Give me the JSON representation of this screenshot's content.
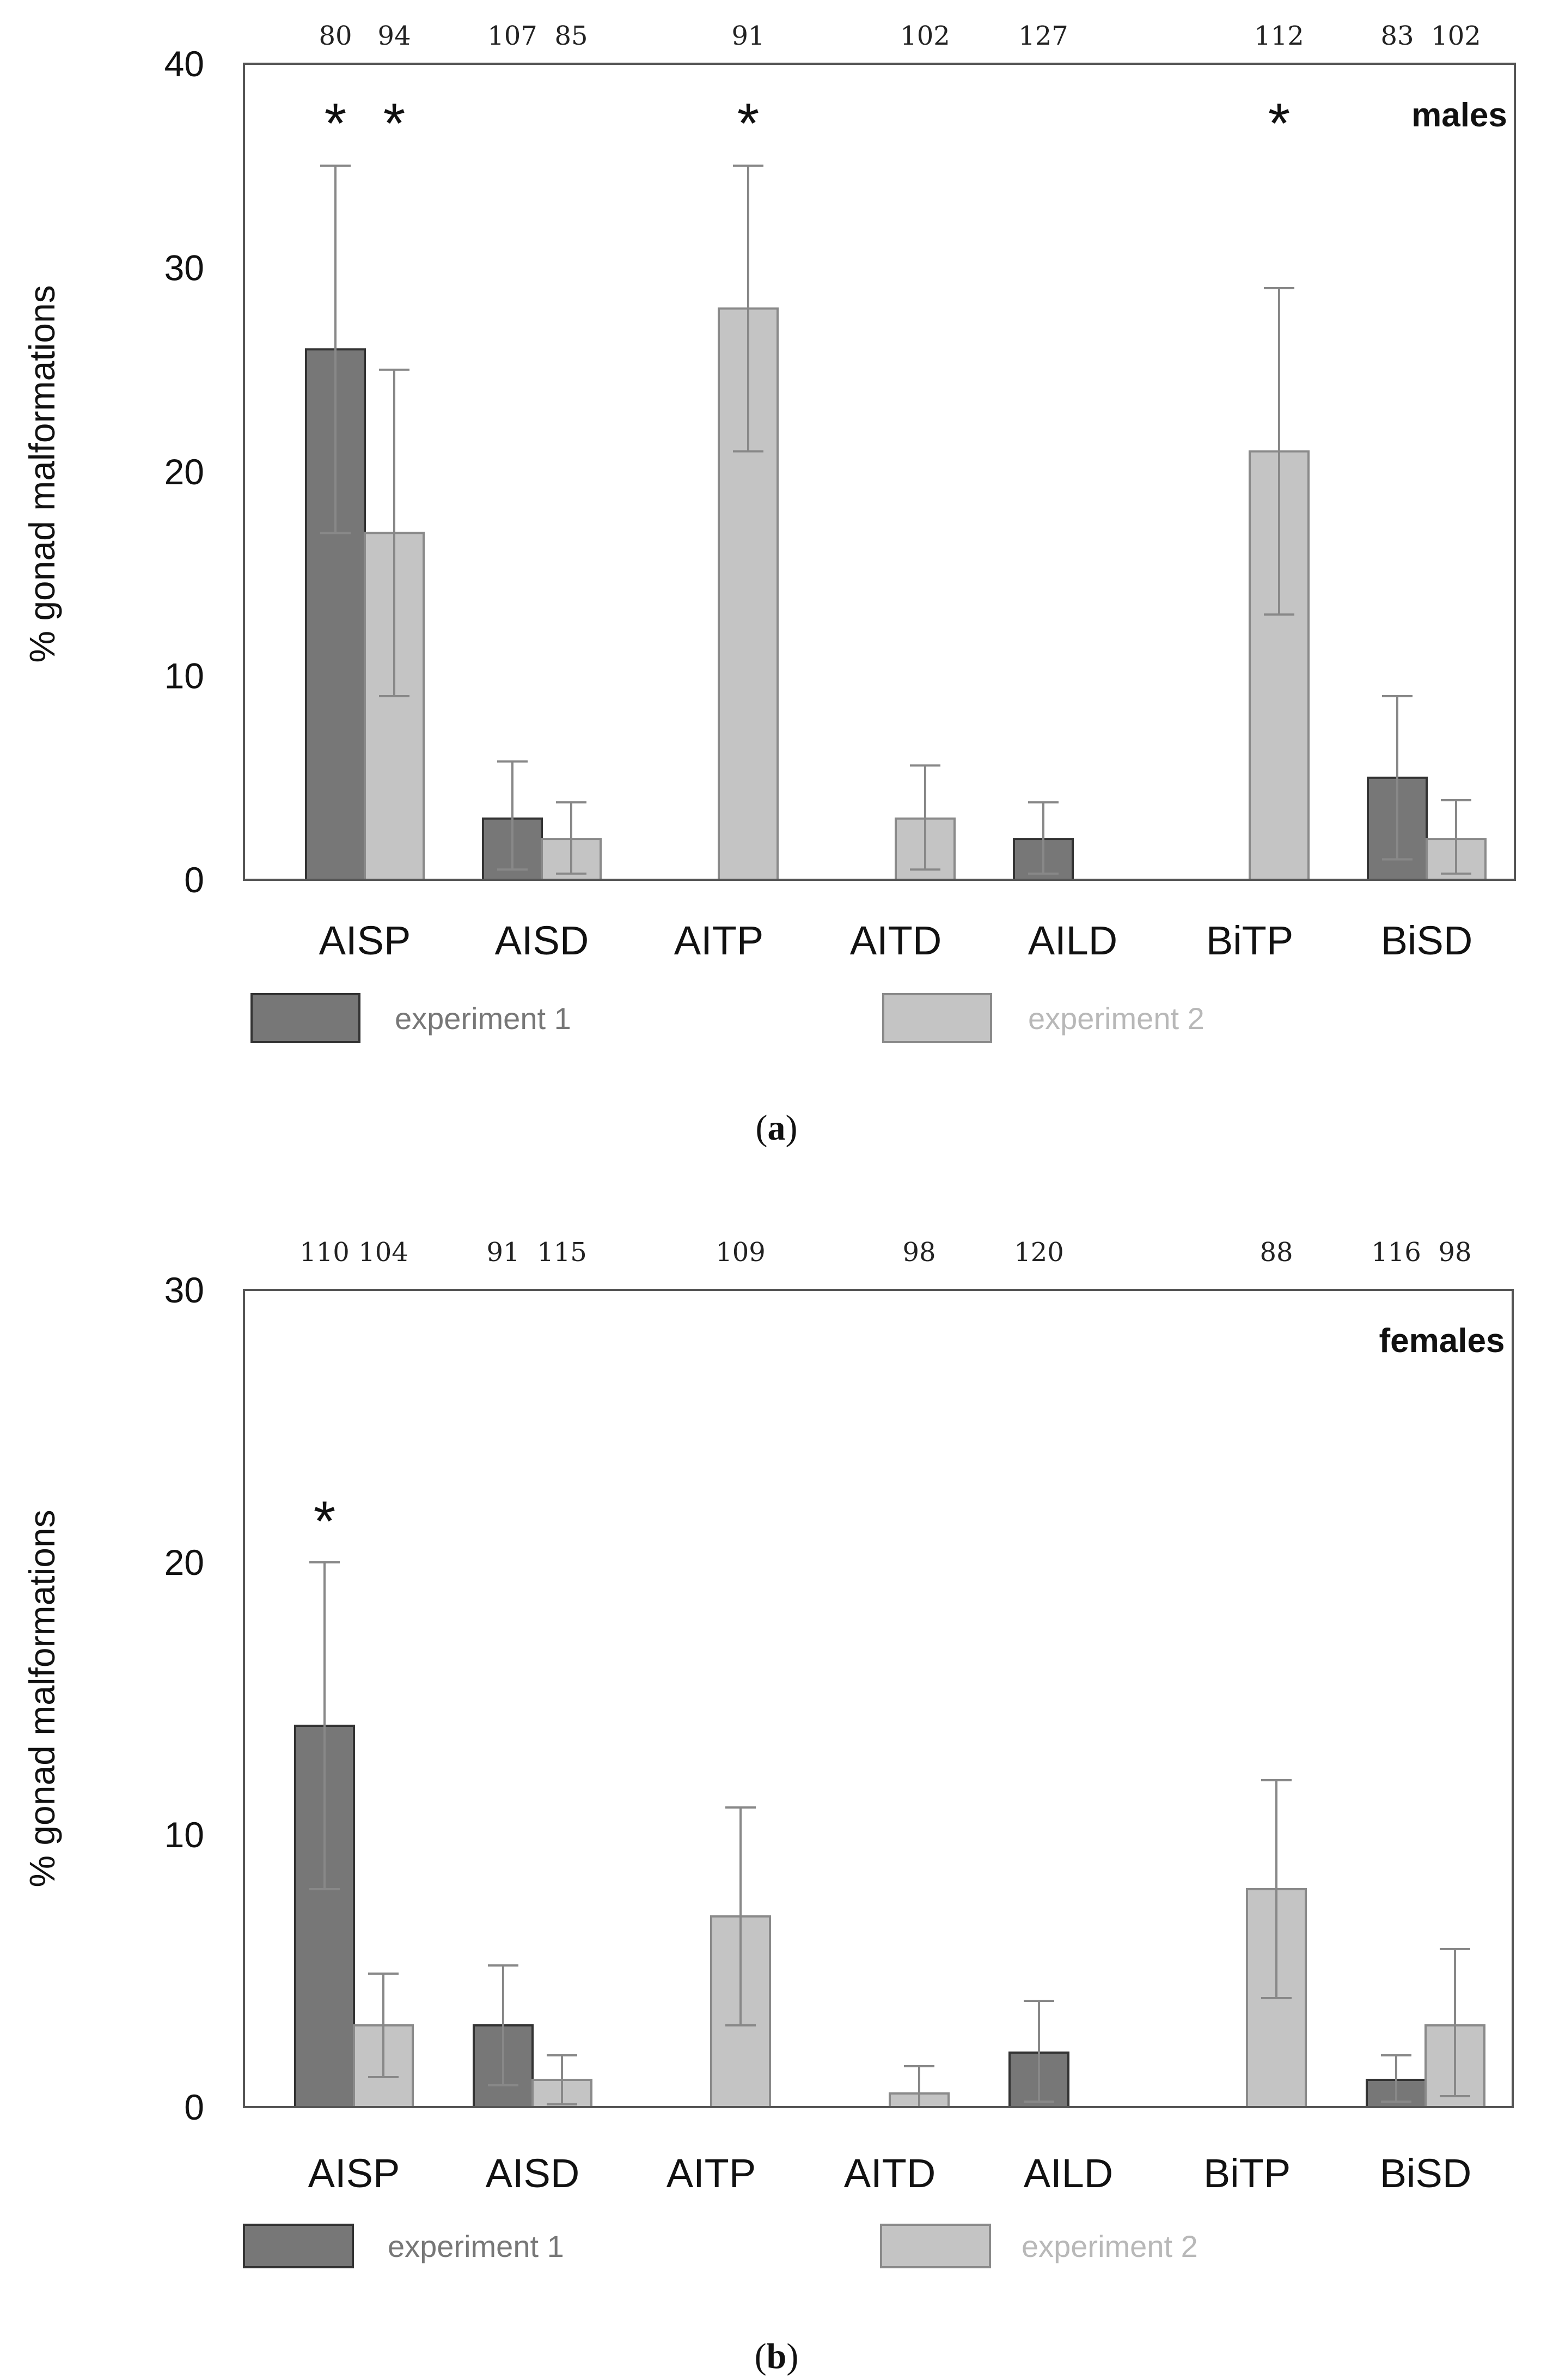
{
  "colors": {
    "experiment_1": "#777777",
    "experiment_2": "#c4c4c4",
    "legend_text_1": "#777777",
    "legend_text_2": "#b8b8b8",
    "frame": "#555555",
    "error_bar": "#888888"
  },
  "chart_data": [
    {
      "type": "bar",
      "panel": "(a)",
      "panel_parts": [
        "(",
        "a",
        ")"
      ],
      "annotation": "males",
      "ylabel": "% gonad malformations",
      "ylim": [
        0,
        40
      ],
      "yticks": [
        0,
        10,
        20,
        30,
        40
      ],
      "categories": [
        "AISP",
        "AISD",
        "AITP",
        "AITD",
        "AILD",
        "BiTP",
        "BiSD"
      ],
      "legend": [
        "experiment 1",
        "experiment 2"
      ],
      "bars": [
        {
          "category": "AISP",
          "series": "experiment 1",
          "value": 26,
          "err_low": 17,
          "err_high": 35,
          "n": "80",
          "significant": true
        },
        {
          "category": "AISP",
          "series": "experiment 2",
          "value": 17,
          "err_low": 9,
          "err_high": 25,
          "n": "94",
          "significant": true
        },
        {
          "category": "AISD",
          "series": "experiment 1",
          "value": 3,
          "err_low": 0.5,
          "err_high": 5.8,
          "n": "107",
          "significant": false
        },
        {
          "category": "AISD",
          "series": "experiment 2",
          "value": 2,
          "err_low": 0.3,
          "err_high": 3.8,
          "n": "85",
          "significant": false
        },
        {
          "category": "AITP",
          "series": "experiment 2",
          "value": 28,
          "err_low": 21,
          "err_high": 35,
          "n": "91",
          "significant": true
        },
        {
          "category": "AITD",
          "series": "experiment 2",
          "value": 3,
          "err_low": 0.5,
          "err_high": 5.6,
          "n": "102",
          "significant": false
        },
        {
          "category": "AILD",
          "series": "experiment 1",
          "value": 2,
          "err_low": 0.3,
          "err_high": 3.8,
          "n": "127",
          "significant": false
        },
        {
          "category": "BiTP",
          "series": "experiment 2",
          "value": 21,
          "err_low": 13,
          "err_high": 29,
          "n": "112",
          "significant": true
        },
        {
          "category": "BiSD",
          "series": "experiment 1",
          "value": 5,
          "err_low": 1,
          "err_high": 9,
          "n": "83",
          "significant": false
        },
        {
          "category": "BiSD",
          "series": "experiment 2",
          "value": 2,
          "err_low": 0.3,
          "err_high": 3.9,
          "n": "102",
          "significant": false
        }
      ]
    },
    {
      "type": "bar",
      "panel": "(b)",
      "panel_parts": [
        "(",
        "b",
        ")"
      ],
      "annotation": "females",
      "ylabel": "% gonad malformations",
      "ylim": [
        0,
        30
      ],
      "yticks": [
        0,
        10,
        20,
        30
      ],
      "categories": [
        "AISP",
        "AISD",
        "AITP",
        "AITD",
        "AILD",
        "BiTP",
        "BiSD"
      ],
      "legend": [
        "experiment 1",
        "experiment 2"
      ],
      "bars": [
        {
          "category": "AISP",
          "series": "experiment 1",
          "value": 14,
          "err_low": 8,
          "err_high": 20,
          "n": "110",
          "significant": true
        },
        {
          "category": "AISP",
          "series": "experiment 2",
          "value": 3,
          "err_low": 1.1,
          "err_high": 4.9,
          "n": "104",
          "significant": false
        },
        {
          "category": "AISD",
          "series": "experiment 1",
          "value": 3,
          "err_low": 0.8,
          "err_high": 5.2,
          "n": "91",
          "significant": false
        },
        {
          "category": "AISD",
          "series": "experiment 2",
          "value": 1,
          "err_low": 0.1,
          "err_high": 1.9,
          "n": "115",
          "significant": false
        },
        {
          "category": "AITP",
          "series": "experiment 2",
          "value": 7,
          "err_low": 3,
          "err_high": 11,
          "n": "109",
          "significant": false
        },
        {
          "category": "AITD",
          "series": "experiment 2",
          "value": 0.5,
          "err_low": 0,
          "err_high": 1.5,
          "n": "98",
          "significant": false
        },
        {
          "category": "AILD",
          "series": "experiment 1",
          "value": 2,
          "err_low": 0.2,
          "err_high": 3.9,
          "n": "120",
          "significant": false
        },
        {
          "category": "BiTP",
          "series": "experiment 2",
          "value": 8,
          "err_low": 4,
          "err_high": 12,
          "n": "88",
          "significant": false
        },
        {
          "category": "BiSD",
          "series": "experiment 1",
          "value": 1,
          "err_low": 0.2,
          "err_high": 1.9,
          "n": "116",
          "significant": false
        },
        {
          "category": "BiSD",
          "series": "experiment 2",
          "value": 3,
          "err_low": 0.4,
          "err_high": 5.8,
          "n": "98",
          "significant": false
        }
      ]
    }
  ]
}
